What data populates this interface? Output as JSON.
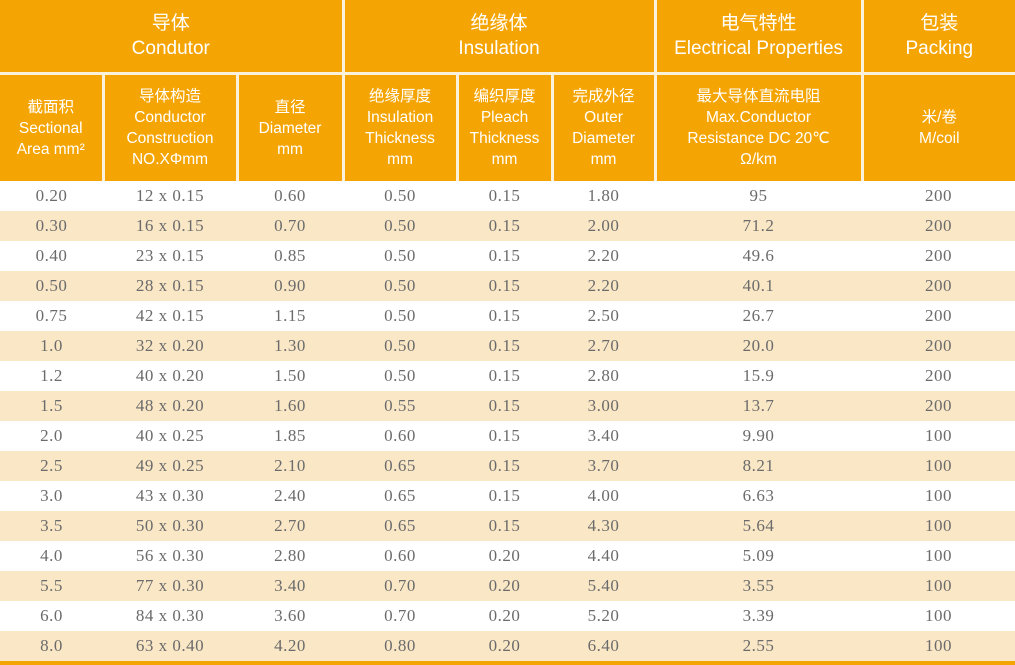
{
  "colors": {
    "header_bg": "#F5A503",
    "header_text": "#FFFFFF",
    "divider": "#FCF2DC",
    "stripe_bg": "#FAE7C6",
    "data_text": "#6B6B6B"
  },
  "table": {
    "groups": [
      {
        "label": [
          "导体",
          "Condutor"
        ],
        "colspan": "3"
      },
      {
        "label": [
          "绝缘体",
          "Insulation"
        ],
        "colspan": "3"
      },
      {
        "label": [
          "电气特性",
          "Electrical Properties"
        ],
        "colspan": "1"
      },
      {
        "label": [
          "包装",
          "Packing"
        ],
        "colspan": "1"
      }
    ],
    "columns": [
      {
        "label": [
          "截面积",
          "Sectional",
          "Area mm²"
        ]
      },
      {
        "label": [
          "导体构造",
          "Conductor",
          "Construction",
          "NO.XΦmm"
        ]
      },
      {
        "label": [
          "直径",
          "Diameter",
          "mm"
        ]
      },
      {
        "label": [
          "绝缘厚度",
          "Insulation",
          "Thickness",
          "mm"
        ]
      },
      {
        "label": [
          "编织厚度",
          "Pleach",
          "Thickness",
          "mm"
        ]
      },
      {
        "label": [
          "完成外径",
          "Outer",
          "Diameter",
          "mm"
        ]
      },
      {
        "label": [
          "最大导体直流电阻",
          "Max.Conductor",
          "Resistance DC 20℃",
          "Ω/km"
        ]
      },
      {
        "label": [
          "米/卷",
          "M/coil"
        ]
      }
    ],
    "rows": [
      [
        "0.20",
        "12 x 0.15",
        "0.60",
        "0.50",
        "0.15",
        "1.80",
        "95",
        "200"
      ],
      [
        "0.30",
        "16 x 0.15",
        "0.70",
        "0.50",
        "0.15",
        "2.00",
        "71.2",
        "200"
      ],
      [
        "0.40",
        "23 x 0.15",
        "0.85",
        "0.50",
        "0.15",
        "2.20",
        "49.6",
        "200"
      ],
      [
        "0.50",
        "28 x 0.15",
        "0.90",
        "0.50",
        "0.15",
        "2.20",
        "40.1",
        "200"
      ],
      [
        "0.75",
        "42 x 0.15",
        "1.15",
        "0.50",
        "0.15",
        "2.50",
        "26.7",
        "200"
      ],
      [
        "1.0",
        "32 x 0.20",
        "1.30",
        "0.50",
        "0.15",
        "2.70",
        "20.0",
        "200"
      ],
      [
        "1.2",
        "40 x 0.20",
        "1.50",
        "0.50",
        "0.15",
        "2.80",
        "15.9",
        "200"
      ],
      [
        "1.5",
        "48 x 0.20",
        "1.60",
        "0.55",
        "0.15",
        "3.00",
        "13.7",
        "200"
      ],
      [
        "2.0",
        "40 x 0.25",
        "1.85",
        "0.60",
        "0.15",
        "3.40",
        "9.90",
        "100"
      ],
      [
        "2.5",
        "49 x 0.25",
        "2.10",
        "0.65",
        "0.15",
        "3.70",
        "8.21",
        "100"
      ],
      [
        "3.0",
        "43 x 0.30",
        "2.40",
        "0.65",
        "0.15",
        "4.00",
        "6.63",
        "100"
      ],
      [
        "3.5",
        "50 x 0.30",
        "2.70",
        "0.65",
        "0.15",
        "4.30",
        "5.64",
        "100"
      ],
      [
        "4.0",
        "56 x 0.30",
        "2.80",
        "0.60",
        "0.20",
        "4.40",
        "5.09",
        "100"
      ],
      [
        "5.5",
        "77 x 0.30",
        "3.40",
        "0.70",
        "0.20",
        "5.40",
        "3.55",
        "100"
      ],
      [
        "6.0",
        "84 x 0.30",
        "3.60",
        "0.70",
        "0.20",
        "5.20",
        "3.39",
        "100"
      ],
      [
        "8.0",
        "63 x 0.40",
        "4.20",
        "0.80",
        "0.20",
        "6.40",
        "2.55",
        "100"
      ]
    ]
  }
}
